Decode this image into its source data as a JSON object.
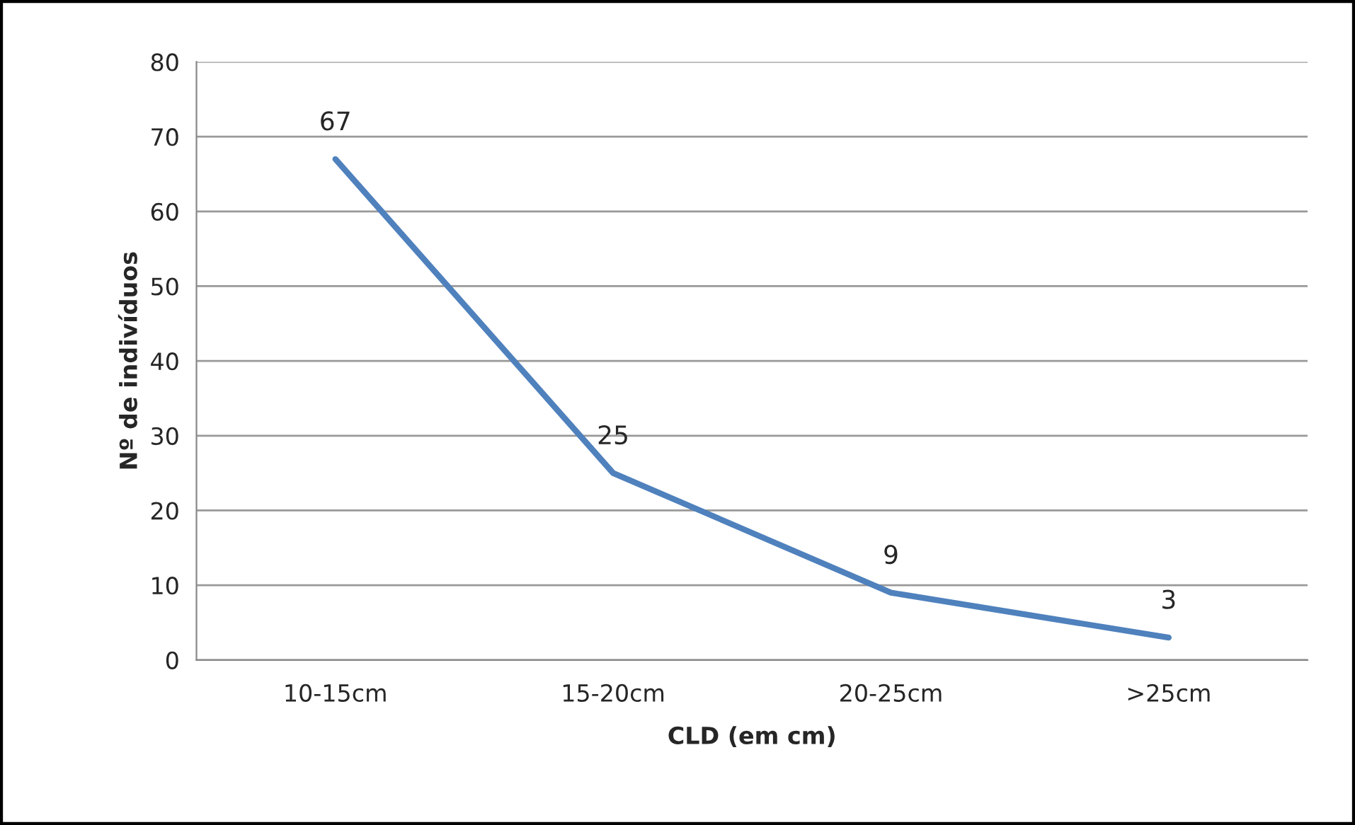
{
  "chart_data": {
    "type": "line",
    "xlabel": "CLD (em cm)",
    "ylabel": "Nº de indivíduos",
    "categories": [
      "10-15cm",
      "15-20cm",
      "20-25cm",
      ">25cm"
    ],
    "series": [
      {
        "color": "#4f81bd",
        "values": [
          67,
          25,
          9,
          3
        ]
      }
    ],
    "ylim": [
      0,
      80
    ],
    "yticks": [
      0,
      10,
      20,
      30,
      40,
      50,
      60,
      70,
      80
    ],
    "grid": "y",
    "data_labels": true,
    "marker": "none",
    "line_style": "solid"
  }
}
